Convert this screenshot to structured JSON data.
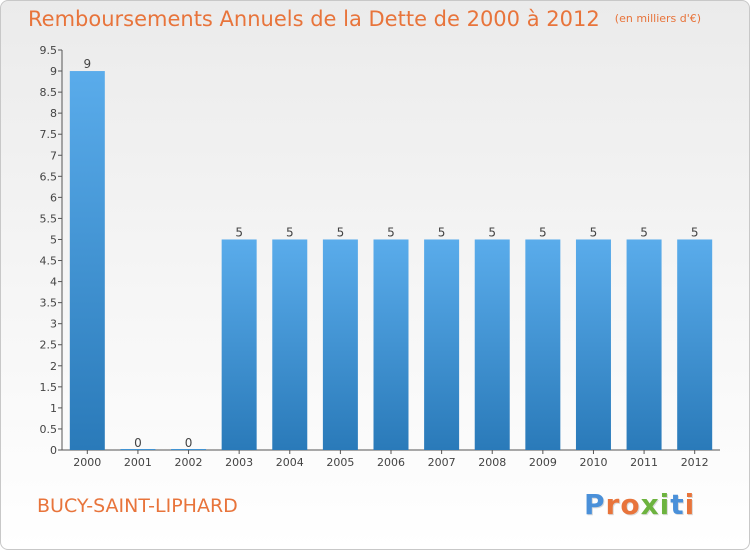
{
  "header": {
    "title": "Remboursements Annuels de la Dette de 2000 à 2012",
    "unit": "(en milliers d'€)"
  },
  "footer": {
    "commune": "BUCY-SAINT-LIPHARD",
    "logo_text": "Proxiti"
  },
  "colors": {
    "title": "#e8743b",
    "bar_light": "#5aaceb",
    "bar_dark": "#2a7ab9",
    "logo": [
      "#4a90d9",
      "#e8743b",
      "#e8743b",
      "#6db33f",
      "#6db33f",
      "#4a90d9",
      "#e8743b"
    ]
  },
  "chart_data": {
    "type": "bar",
    "categories": [
      "2000",
      "2001",
      "2002",
      "2003",
      "2004",
      "2005",
      "2006",
      "2007",
      "2008",
      "2009",
      "2010",
      "2011",
      "2012"
    ],
    "values": [
      9,
      0,
      0,
      5,
      5,
      5,
      5,
      5,
      5,
      5,
      5,
      5,
      5
    ],
    "data_labels": [
      "9",
      "0",
      "0",
      "5",
      "5",
      "5",
      "5",
      "5",
      "5",
      "5",
      "5",
      "5",
      "5"
    ],
    "yticks": [
      "0",
      "0.5",
      "1",
      "1.5",
      "2",
      "2.5",
      "3",
      "3.5",
      "4",
      "4.5",
      "5",
      "5.5",
      "6",
      "6.5",
      "7",
      "7.5",
      "8",
      "8.5",
      "9",
      "9.5"
    ],
    "ylim": [
      0,
      9.5
    ],
    "grid": false,
    "legend": "none"
  }
}
